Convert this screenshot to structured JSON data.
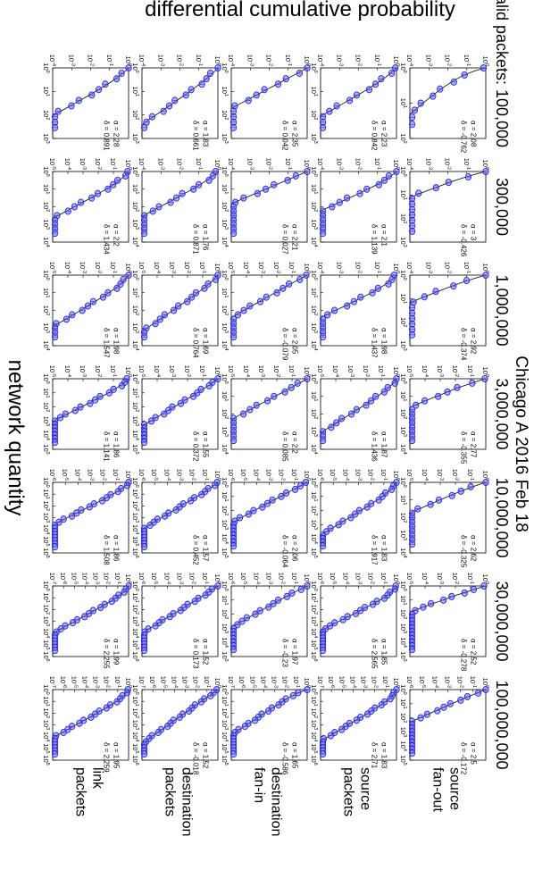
{
  "suptitle": "Chicago A 2016 Feb 18",
  "y_label": "differential cumulative probability",
  "x_label": "network quantity",
  "column_label_prefix": "valid packets: ",
  "columns": [
    "100,000",
    "300,000",
    "1,000,000",
    "3,000,000",
    "10,000,000",
    "30,000,000",
    "100,000,000"
  ],
  "rows": [
    {
      "line1": "source",
      "line2": "fan-out"
    },
    {
      "line1": "source",
      "line2": "packets"
    },
    {
      "line1": "destination",
      "line2": "fan-in"
    },
    {
      "line1": "destination",
      "line2": "packets"
    },
    {
      "line1": "link",
      "line2": "packets"
    }
  ],
  "colors": {
    "marker": "#2b2bd6",
    "fill": "#6f6fe6",
    "fit": "#000000"
  },
  "chart_data": {
    "type": "scatter",
    "xscale": "log",
    "yscale": "log",
    "xmax_exponents": [
      [
        2,
        3,
        3,
        4,
        4,
        5,
        5
      ],
      [
        3,
        4,
        4,
        4,
        5,
        6,
        6
      ],
      [
        3,
        4,
        4,
        4,
        5,
        5,
        6
      ],
      [
        3,
        4,
        4,
        5,
        6,
        6,
        6
      ],
      [
        3,
        4,
        4,
        5,
        6,
        6,
        6
      ]
    ],
    "ymin_exponents": [
      [
        4,
        4,
        4,
        5,
        5,
        5,
        6
      ],
      [
        4,
        4,
        4,
        5,
        6,
        6,
        7
      ],
      [
        4,
        4,
        5,
        5,
        6,
        6,
        7
      ],
      [
        4,
        4,
        5,
        5,
        6,
        6,
        7
      ],
      [
        4,
        5,
        5,
        5,
        6,
        7,
        7
      ]
    ],
    "alpha": [
      [
        "2.08",
        "3",
        "2.92",
        "2.77",
        "2.62",
        "2.52",
        "2.5"
      ],
      [
        "2.23",
        "2.1",
        "1.98",
        "1.87",
        "1.83",
        "1.85",
        "1.83"
      ],
      [
        "2.35",
        "2.21",
        "2.05",
        "2.2",
        "2.06",
        "1.97",
        "1.65"
      ],
      [
        "1.83",
        "1.76",
        "1.69",
        "1.55",
        "1.57",
        "1.52",
        "1.52"
      ],
      [
        "2.28",
        "2.2",
        "1.98",
        "1.86",
        "1.86",
        "1.99",
        "1.95"
      ]
    ],
    "delta": [
      [
        "-0.762",
        "-0.426",
        "-0.374",
        "-0.355",
        "-0.325",
        "-0.278",
        "-0.172"
      ],
      [
        "0.842",
        "1.139",
        "1.437",
        "1.436",
        "1.917",
        "2.565",
        "2.71"
      ],
      [
        "0.042",
        "0.027",
        "-0.079",
        "0.085",
        "-0.064",
        "-0.23",
        "-0.586"
      ],
      [
        "0.661",
        "0.871",
        "0.764",
        "0.372",
        "0.452",
        "0.173",
        "-0.018"
      ],
      [
        "0.891",
        "1.434",
        "1.547",
        "1.141",
        "1.508",
        "2.255",
        "2.259"
      ]
    ]
  }
}
